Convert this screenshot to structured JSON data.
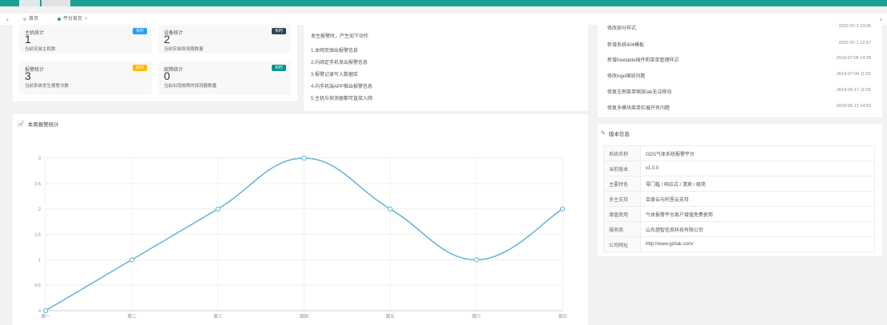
{
  "tabs": {
    "left_arrow": "‹",
    "right_arrow": "›",
    "items": [
      {
        "label": "首页"
      },
      {
        "label": "平台首页"
      }
    ],
    "close_glyph": "×"
  },
  "stats": [
    {
      "title": "主机统计",
      "badge": "实时",
      "badge_color": "#1e9fff",
      "value": "1",
      "desc": "当前安装主机数"
    },
    {
      "title": "设备统计",
      "badge": "实时",
      "badge_color": "#2f4056",
      "value": "2",
      "desc": "当前安装探测器数量"
    },
    {
      "title": "报警统计",
      "badge": "实时",
      "badge_color": "#ffb800",
      "value": "3",
      "desc": "当前系统发生报警次数"
    },
    {
      "title": "故障统计",
      "badge": "实时",
      "badge_color": "#009688",
      "value": "0",
      "desc": "当前出现故障的探测器数量"
    }
  ],
  "alarm_actions": {
    "heading": "发生报警时，产生如下动作",
    "items": [
      "1.本网页弹出报警信息",
      "2.向绑定手机发出报警信息",
      "3.报警记录写入数据库",
      "4.向手机端APP推出报警信息",
      "5.主机与探测器都可直接入网"
    ]
  },
  "news": [
    {
      "title": "修改部分样式",
      "date": "2022-07-2 23:06"
    },
    {
      "title": "新增系统404模板",
      "date": "2022-07-1 12:57"
    },
    {
      "title": "新增treetable插件和菜单管理样式",
      "date": "2019-07-05 14:28"
    },
    {
      "title": "修改logo缩放问题",
      "date": "2019-07-04 11:02"
    },
    {
      "title": "修复左侧菜单缩放tab无法移动",
      "date": "2019-06-17 11:55"
    },
    {
      "title": "修复多模块菜单栏展开有问题",
      "date": "2019-06-13 14:53"
    }
  ],
  "chart_title": "本周报警统计",
  "chart_data": {
    "type": "line",
    "title": "本周报警统计",
    "categories": [
      "周一",
      "周二",
      "周三",
      "周四",
      "周五",
      "周六",
      "周日"
    ],
    "series": [
      {
        "values": [
          0,
          1,
          2,
          3,
          2,
          1,
          2
        ]
      }
    ],
    "ylim": [
      0,
      3
    ],
    "yticks": [
      "0",
      "0.5",
      "1",
      "1.5",
      "2",
      "2.5",
      "3"
    ],
    "grid": true,
    "smooth": true,
    "line_color": "#62b3d6"
  },
  "version": {
    "title": "版本信息",
    "rows": [
      {
        "k": "系统名称",
        "v": "GDS气体系统报警平台"
      },
      {
        "k": "当前版本",
        "v": "v1.0.0"
      },
      {
        "k": "主要特色",
        "v": "零门槛 / 响应式 / 清爽 / 极简"
      },
      {
        "k": "多主支持",
        "v": "百度云与阿里云支持"
      },
      {
        "k": "增值使用",
        "v": "气体报警平台客户增值免费使用"
      },
      {
        "k": "服务商",
        "v": "山东翘智信息科技有限公司"
      },
      {
        "k": "公司网址",
        "v": "http://www.giztak.com/"
      }
    ]
  }
}
